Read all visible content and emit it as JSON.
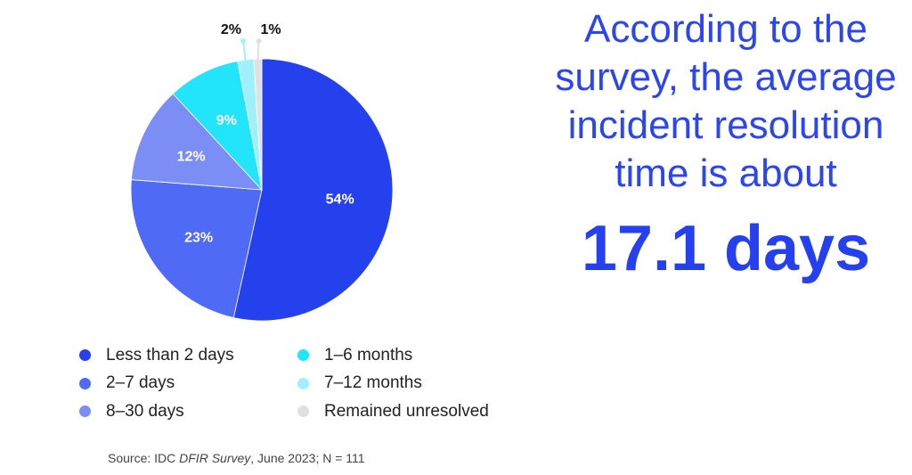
{
  "chart_data": {
    "type": "pie",
    "start": "top",
    "direction": "clockwise",
    "slices": [
      {
        "label": "Less than 2 days",
        "value": 54,
        "data_label": "54%",
        "color": "#2541ee"
      },
      {
        "label": "2–7 days",
        "value": 23,
        "data_label": "23%",
        "color": "#4f6af5"
      },
      {
        "label": "8–30 days",
        "value": 12,
        "data_label": "12%",
        "color": "#7b8ef5"
      },
      {
        "label": "1–6 months",
        "value": 9,
        "data_label": "9%",
        "color": "#22e4fb"
      },
      {
        "label": "7–12 months",
        "value": 2,
        "data_label": "2%",
        "color": "#9ff0fb"
      },
      {
        "label": "Remained unresolved",
        "value": 1,
        "data_label": "1%",
        "color": "#e0e0e0"
      }
    ],
    "legend_position": "bottom"
  },
  "headline": {
    "lines": [
      "According to the",
      "survey, the average",
      "incident resolution",
      "time is about"
    ],
    "value": "17.1 days"
  },
  "source": {
    "prefix": "Source: IDC ",
    "survey": "DFIR Survey",
    "suffix": ", June 2023; N = 111"
  }
}
